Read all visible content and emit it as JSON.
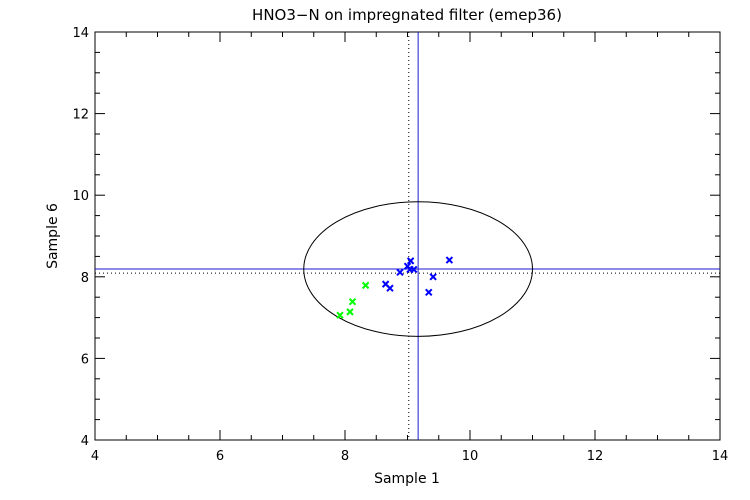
{
  "chart_data": {
    "type": "scatter",
    "title": "HNO3−N on impregnated filter (emep36)",
    "xlabel": "Sample 1",
    "ylabel": "Sample 6",
    "xlim": [
      4,
      14
    ],
    "ylim": [
      4,
      14
    ],
    "xticks": [
      "4",
      "6",
      "8",
      "10",
      "12",
      "14"
    ],
    "yticks": [
      "4",
      "6",
      "8",
      "10",
      "12",
      "14"
    ],
    "grid": false,
    "series": [
      {
        "name": "blue",
        "color": "#0000ff",
        "marker": "x",
        "x": [
          9.67,
          9.05,
          9.0,
          9.04,
          9.1,
          8.88,
          9.41,
          8.65,
          8.72,
          9.34
        ],
        "y": [
          8.41,
          8.39,
          8.26,
          8.18,
          8.18,
          8.11,
          8.0,
          7.82,
          7.72,
          7.62
        ]
      },
      {
        "name": "green",
        "color": "#00ff00",
        "marker": "x",
        "x": [
          8.33,
          8.12,
          8.08,
          7.92
        ],
        "y": [
          7.79,
          7.39,
          7.14,
          7.06
        ]
      }
    ],
    "reference_lines": {
      "solid": {
        "x": 9.17,
        "y": 8.19,
        "color": "#1a1ad0"
      },
      "dotted": {
        "x": 9.02,
        "y": 8.09
      }
    },
    "ellipse": {
      "cx": 9.17,
      "cy": 8.19,
      "rx": 1.83,
      "ry": 1.65
    }
  }
}
